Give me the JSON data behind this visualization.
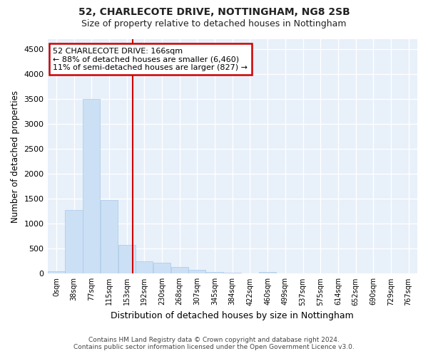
{
  "title": "52, CHARLECOTE DRIVE, NOTTINGHAM, NG8 2SB",
  "subtitle": "Size of property relative to detached houses in Nottingham",
  "xlabel": "Distribution of detached houses by size in Nottingham",
  "ylabel": "Number of detached properties",
  "bar_color": "#cce0f5",
  "bar_edge_color": "#a8c8e8",
  "background_color": "#e8f0fa",
  "grid_color": "#ffffff",
  "fig_color": "#ffffff",
  "categories": [
    "0sqm",
    "38sqm",
    "77sqm",
    "115sqm",
    "153sqm",
    "192sqm",
    "230sqm",
    "268sqm",
    "307sqm",
    "345sqm",
    "384sqm",
    "422sqm",
    "460sqm",
    "499sqm",
    "537sqm",
    "575sqm",
    "614sqm",
    "652sqm",
    "690sqm",
    "729sqm",
    "767sqm"
  ],
  "values": [
    50,
    1270,
    3500,
    1470,
    570,
    240,
    220,
    130,
    80,
    40,
    15,
    5,
    40,
    5,
    0,
    0,
    0,
    0,
    0,
    0,
    0
  ],
  "property_label": "52 CHARLECOTE DRIVE: 166sqm",
  "arrow_left_text": "← 88% of detached houses are smaller (6,460)",
  "arrow_right_text": "11% of semi-detached houses are larger (827) →",
  "ylim": [
    0,
    4700
  ],
  "yticks": [
    0,
    500,
    1000,
    1500,
    2000,
    2500,
    3000,
    3500,
    4000,
    4500
  ],
  "red_line_x": 4.33,
  "red_line_color": "#cc0000",
  "footer_line1": "Contains HM Land Registry data © Crown copyright and database right 2024.",
  "footer_line2": "Contains public sector information licensed under the Open Government Licence v3.0."
}
